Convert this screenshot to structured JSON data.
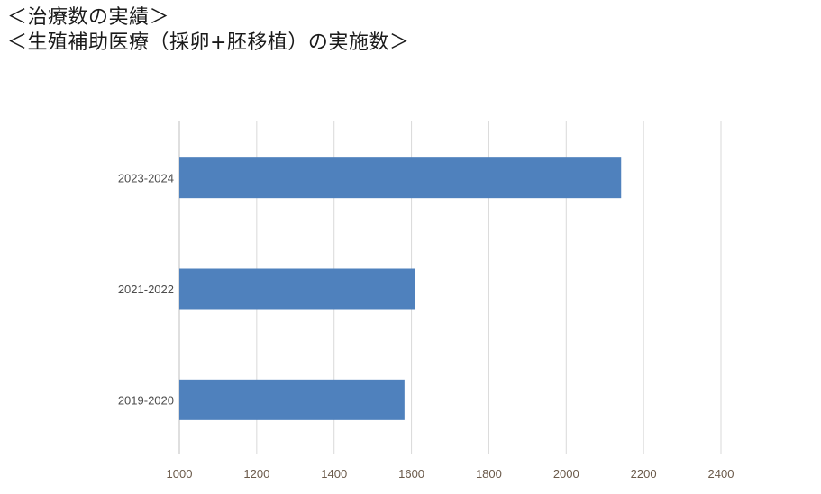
{
  "title": {
    "line1": "＜治療数の実績＞",
    "line2": "＜生殖補助医療（採卵+胚移植）の実施数＞"
  },
  "chart_data": {
    "type": "bar",
    "orientation": "horizontal",
    "categories": [
      "2023-2024",
      "2021-2022",
      "2019-2020"
    ],
    "values": [
      2142,
      1610,
      1582
    ],
    "xlim": [
      1000,
      2400
    ],
    "xticks": [
      "1000",
      "1200",
      "1400",
      "1600",
      "1800",
      "2000",
      "2200",
      "2400"
    ],
    "xlabel": "",
    "ylabel": "",
    "grid": "vertical",
    "legend": "none",
    "bar_color": "#4f81bd",
    "grid_color": "#d9d9d9"
  }
}
